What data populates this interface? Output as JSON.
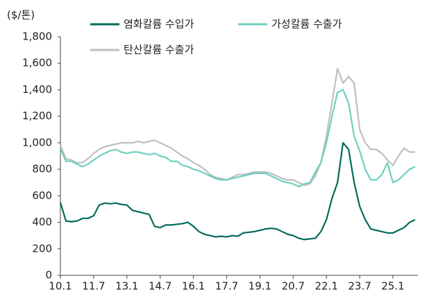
{
  "chart_data": {
    "type": "line",
    "y_label": "($/톤)",
    "categories": [
      "10.1",
      null,
      null,
      null,
      null,
      null,
      "11.7",
      null,
      null,
      null,
      null,
      null,
      "13.1",
      null,
      null,
      null,
      null,
      null,
      "14.7",
      null,
      null,
      null,
      null,
      null,
      "16.1",
      null,
      null,
      null,
      null,
      null,
      "17.7",
      null,
      null,
      null,
      null,
      null,
      "19.1",
      null,
      null,
      null,
      null,
      null,
      "20.7",
      null,
      null,
      null,
      null,
      null,
      "22.1",
      null,
      null,
      null,
      null,
      null,
      "23.7",
      null,
      null,
      null,
      null,
      null,
      "25.1",
      null,
      null,
      null,
      null
    ],
    "series": [
      {
        "name": "염화칼륨 수입가",
        "color": "#006b5b",
        "values": [
          550,
          410,
          405,
          410,
          430,
          430,
          450,
          530,
          545,
          540,
          545,
          535,
          530,
          490,
          480,
          470,
          460,
          370,
          360,
          380,
          380,
          385,
          390,
          400,
          370,
          330,
          310,
          300,
          290,
          295,
          290,
          300,
          295,
          320,
          325,
          330,
          340,
          350,
          355,
          350,
          330,
          310,
          300,
          280,
          270,
          275,
          280,
          330,
          420,
          580,
          700,
          1000,
          950,
          700,
          520,
          420,
          350,
          340,
          330,
          320,
          320,
          340,
          360,
          400,
          420
        ]
      },
      {
        "name": "가성칼륨 수출가",
        "color": "#6fcfbf",
        "values": [
          960,
          860,
          860,
          840,
          820,
          840,
          870,
          900,
          920,
          940,
          950,
          930,
          920,
          930,
          930,
          920,
          910,
          920,
          900,
          890,
          860,
          860,
          830,
          820,
          800,
          790,
          770,
          750,
          730,
          720,
          720,
          730,
          740,
          750,
          760,
          770,
          770,
          770,
          750,
          730,
          710,
          700,
          690,
          670,
          690,
          700,
          780,
          850,
          1000,
          1200,
          1380,
          1400,
          1300,
          1050,
          940,
          800,
          720,
          720,
          760,
          850,
          700,
          720,
          760,
          800,
          820
        ]
      },
      {
        "name": "탄산칼륨 수출가",
        "color": "#bfbfbf",
        "values": [
          980,
          880,
          870,
          850,
          850,
          880,
          920,
          950,
          970,
          980,
          990,
          1000,
          1000,
          1000,
          1010,
          1000,
          1010,
          1020,
          1000,
          980,
          960,
          930,
          900,
          880,
          850,
          830,
          800,
          760,
          740,
          730,
          720,
          740,
          760,
          760,
          770,
          780,
          780,
          780,
          770,
          750,
          730,
          720,
          720,
          700,
          680,
          690,
          750,
          850,
          1050,
          1300,
          1560,
          1450,
          1500,
          1450,
          1100,
          1000,
          950,
          950,
          920,
          870,
          830,
          900,
          960,
          930,
          930
        ]
      }
    ],
    "ylim": [
      0,
      1800
    ],
    "yticks": [
      0,
      200,
      400,
      600,
      800,
      {
        "value": 1000,
        "label": "1,000"
      },
      {
        "value": 1200,
        "label": "1,200"
      },
      {
        "value": 1400,
        "label": "1,400"
      },
      {
        "value": 1600,
        "label": "1,600"
      },
      {
        "value": 1800,
        "label": "1,800"
      }
    ],
    "grid": false
  }
}
